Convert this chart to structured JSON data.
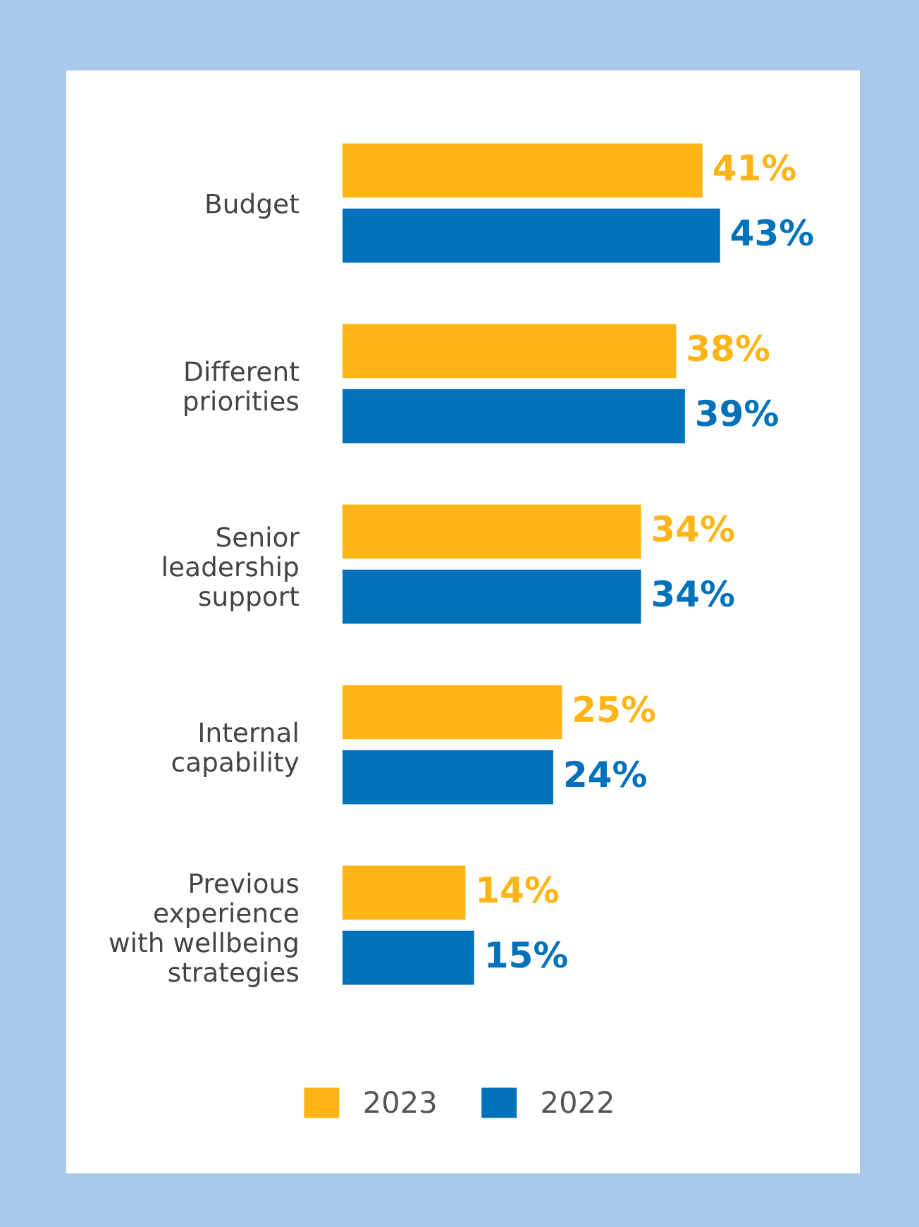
{
  "chart_data": {
    "type": "bar",
    "orientation": "horizontal",
    "categories": [
      "Budget",
      "Different\npriorities",
      "Senior\nleadership\nsupport",
      "Internal\ncapability",
      "Previous\nexperience\nwith wellbeing\nstrategies"
    ],
    "series": [
      {
        "name": "2023",
        "color": "#fdb515",
        "values": [
          41,
          38,
          34,
          25,
          14
        ],
        "value_labels": [
          "41%",
          "38%",
          "34%",
          "25%",
          "14%"
        ]
      },
      {
        "name": "2022",
        "color": "#0072bc",
        "values": [
          43,
          39,
          34,
          24,
          15
        ],
        "value_labels": [
          "43%",
          "39%",
          "34%",
          "24%",
          "15%"
        ]
      }
    ],
    "legend": "bottom",
    "grid": false,
    "tick_labels": "y"
  }
}
